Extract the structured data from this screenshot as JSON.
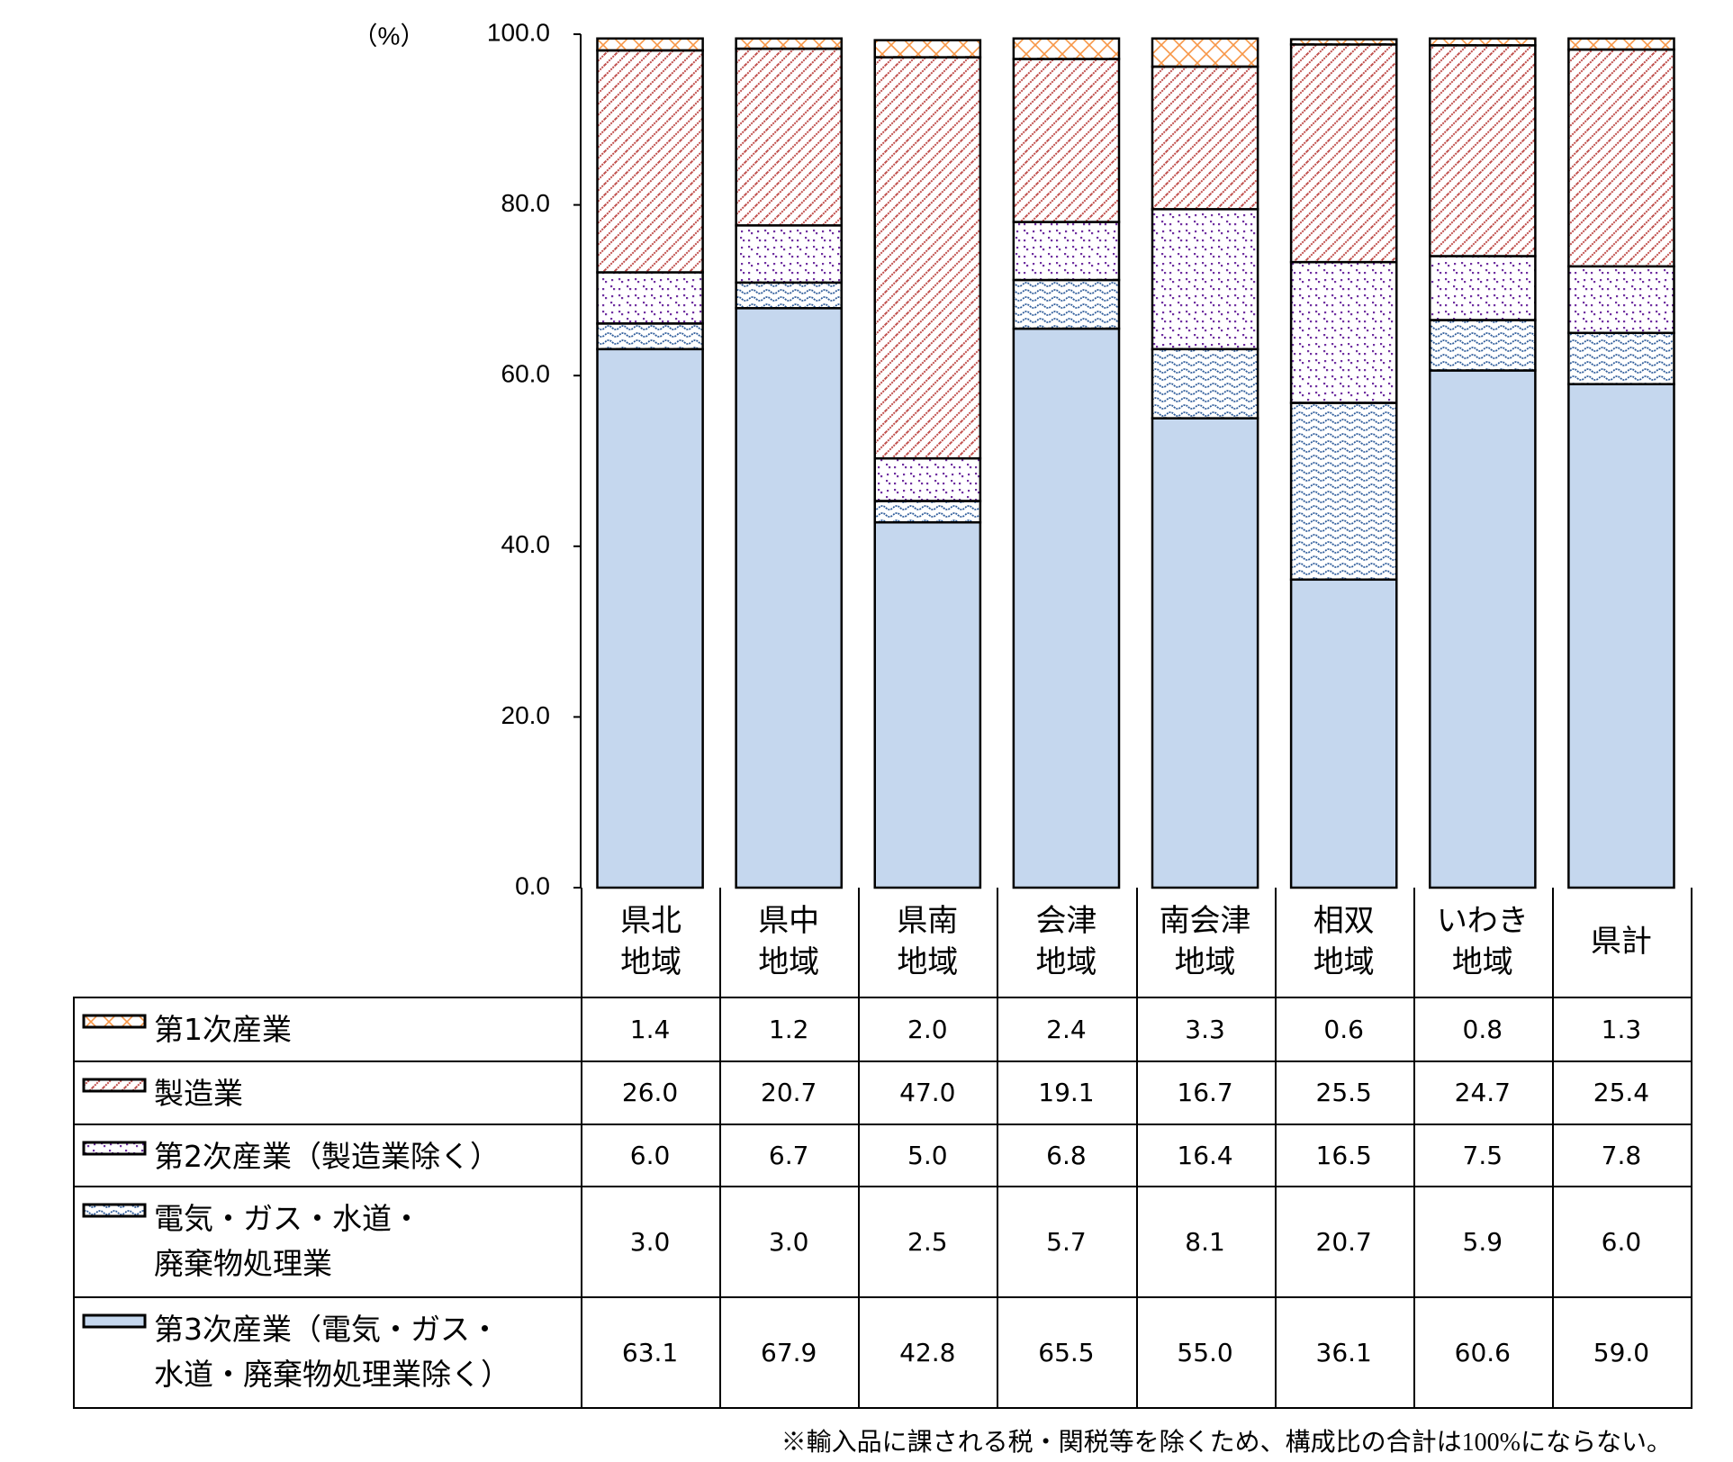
{
  "chart_data": {
    "type": "bar",
    "stacked": true,
    "y_unit_label": "（%）",
    "categories": [
      "県北\n地域",
      "県中\n地域",
      "県南\n地域",
      "会津\n地域",
      "南会津\n地域",
      "相双\n地域",
      "いわき\n地域",
      "県計"
    ],
    "series": [
      {
        "name": "第1次産業",
        "color": "#f79646",
        "pattern": "crosshatch",
        "values": [
          1.4,
          1.2,
          2.0,
          2.4,
          3.3,
          0.6,
          0.8,
          1.3
        ],
        "value_labels": [
          "1.4",
          "1.2",
          "2.0",
          "2.4",
          "3.3",
          "0.6",
          "0.8",
          "1.3"
        ]
      },
      {
        "name": "製造業",
        "color": "#c0504d",
        "pattern": "diagonal",
        "values": [
          26.0,
          20.7,
          47.0,
          19.1,
          16.7,
          25.5,
          24.7,
          25.4
        ],
        "value_labels": [
          "26.0",
          "20.7",
          "47.0",
          "19.1",
          "16.7",
          "25.5",
          "24.7",
          "25.4"
        ]
      },
      {
        "name": "第2次産業（製造業除く）",
        "color": "#7030a0",
        "pattern": "dots",
        "values": [
          6.0,
          6.7,
          5.0,
          6.8,
          16.4,
          16.5,
          7.5,
          7.8
        ],
        "value_labels": [
          "6.0",
          "6.7",
          "5.0",
          "6.8",
          "16.4",
          "16.5",
          "7.5",
          "7.8"
        ]
      },
      {
        "name": "電気・ガス・水道・\n廃棄物処理業",
        "color": "#2e5c9a",
        "pattern": "wave",
        "values": [
          3.0,
          3.0,
          2.5,
          5.7,
          8.1,
          20.7,
          5.9,
          6.0
        ],
        "value_labels": [
          "3.0",
          "3.0",
          "2.5",
          "5.7",
          "8.1",
          "20.7",
          "5.9",
          "6.0"
        ]
      },
      {
        "name": "第3次産業（電気・ガス・\n水道・廃棄物処理業除く）",
        "color": "#c5d7ee",
        "pattern": "solid",
        "values": [
          63.1,
          67.9,
          42.8,
          65.5,
          55.0,
          36.1,
          60.6,
          59.0
        ],
        "value_labels": [
          "63.1",
          "67.9",
          "42.8",
          "65.5",
          "55.0",
          "36.1",
          "60.6",
          "59.0"
        ]
      }
    ],
    "ylim": [
      0,
      100
    ],
    "yticks": [
      {
        "value": 0,
        "label": "0.0"
      },
      {
        "value": 20,
        "label": "20.0"
      },
      {
        "value": 40,
        "label": "40.0"
      },
      {
        "value": 60,
        "label": "60.0"
      },
      {
        "value": 80,
        "label": "80.0"
      },
      {
        "value": 100,
        "label": "100.0"
      }
    ],
    "grid": false,
    "footnote": "※輸入品に課される税・関税等を除くため、構成比の合計は100%にならない。"
  }
}
